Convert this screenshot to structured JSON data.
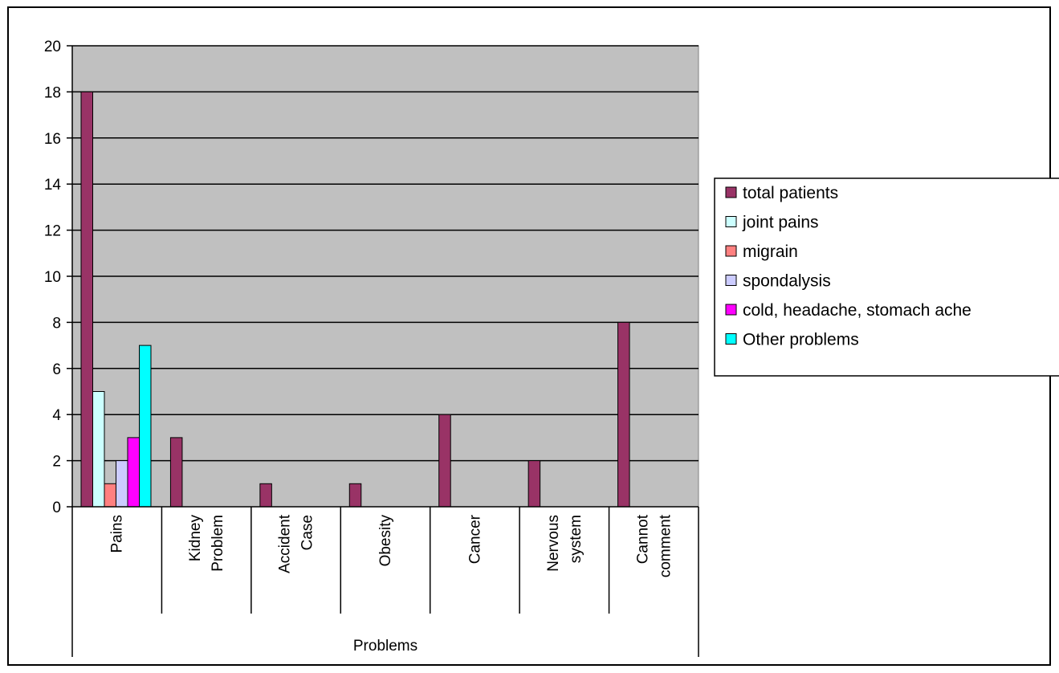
{
  "chart_data": {
    "type": "bar",
    "xlabel": "Problems",
    "ylabel": "",
    "ylim": [
      0,
      20
    ],
    "yticks": [
      0,
      2,
      4,
      6,
      8,
      10,
      12,
      14,
      16,
      18,
      20
    ],
    "grid": true,
    "legend_position": "right",
    "categories": [
      [
        "Pains"
      ],
      [
        "Kidney",
        "Problem"
      ],
      [
        "Accident",
        "Case"
      ],
      [
        "Obesity"
      ],
      [
        "Cancer"
      ],
      [
        "Nervous",
        "system"
      ],
      [
        "Cannot",
        "comment"
      ]
    ],
    "series": [
      {
        "name": "total patients",
        "color": "#993366",
        "values": [
          18,
          3,
          1,
          1,
          4,
          2,
          8
        ]
      },
      {
        "name": "joint pains",
        "color": "#ccffff",
        "values": [
          5,
          null,
          null,
          null,
          null,
          null,
          null
        ]
      },
      {
        "name": "migrain",
        "color": "#ff8080",
        "values": [
          1,
          null,
          null,
          null,
          null,
          null,
          null
        ]
      },
      {
        "name": "spondalysis",
        "color": "#ccccff",
        "values": [
          2,
          null,
          null,
          null,
          null,
          null,
          null
        ]
      },
      {
        "name": "cold, headache, stomach ache",
        "color": "#ff00ff",
        "values": [
          3,
          null,
          null,
          null,
          null,
          null,
          null
        ]
      },
      {
        "name": "Other problems",
        "color": "#00ffff",
        "values": [
          7,
          null,
          null,
          null,
          null,
          null,
          null
        ]
      }
    ],
    "plot_background": "#c0c0c0"
  }
}
